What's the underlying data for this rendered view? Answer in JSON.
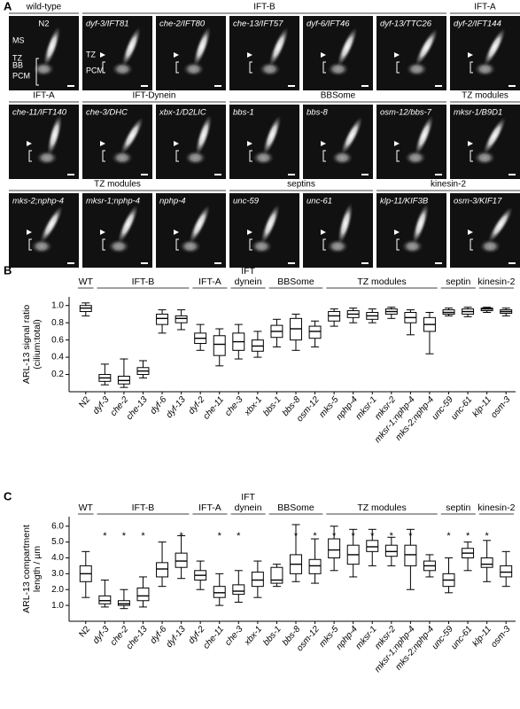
{
  "panel_a": {
    "label": "A",
    "rows": [
      {
        "groups": [
          {
            "title": "wild-type",
            "panels": [
              "N2"
            ]
          },
          {
            "title": "IFT-B",
            "panels": [
              "dyf-3/IFT81",
              "che-2/IFT80",
              "che-13/IFT57",
              "dyf-6/IFT46",
              "dyf-13/TTC26"
            ]
          },
          {
            "title": "IFT-A",
            "panels": [
              "dyf-2/IFT144"
            ]
          }
        ]
      },
      {
        "groups": [
          {
            "title": "IFT-A",
            "panels": [
              "che-11/IFT140"
            ]
          },
          {
            "title": "IFT-Dynein",
            "panels": [
              "che-3/DHC",
              "xbx-1/D2LIC"
            ]
          },
          {
            "title": "BBSome",
            "panels": [
              "bbs-1",
              "bbs-8",
              "osm-12/bbs-7"
            ]
          },
          {
            "title": "TZ modules",
            "panels": [
              "mksr-1/B9D1"
            ]
          }
        ]
      },
      {
        "groups": [
          {
            "title": "TZ modules",
            "panels": [
              "mks-2;nphp-4",
              "mksr-1;nphp-4",
              "nphp-4"
            ]
          },
          {
            "title": "septins",
            "panels": [
              "unc-59",
              "unc-61"
            ]
          },
          {
            "title": "kinesin-2",
            "panels": [
              "klp-11/KIF3B",
              "osm-3/KIF17"
            ]
          }
        ]
      }
    ],
    "wild_type_labels": [
      "MS",
      "TZ",
      "BB",
      "PCM"
    ],
    "ift_b_labels": [
      "TZ",
      "PCM"
    ]
  },
  "chart_data": [
    {
      "type": "box",
      "panel_label": "B",
      "ylabel": [
        "ARL-13 signal ratio",
        "(cilium:total)"
      ],
      "categories": [
        "N2",
        "dyf-3",
        "che-2",
        "che-13",
        "dyf-6",
        "dyf-13",
        "dyf-2",
        "che-11",
        "che-3",
        "xbx-1",
        "bbs-1",
        "bbs-8",
        "osm-12",
        "mks-5",
        "nphp-4",
        "mksr-1",
        "mksr-2",
        "mksr-1;nphp-4",
        "mks-2;nphp-4",
        "unc-59",
        "unc-61",
        "klp-11",
        "osm-3"
      ],
      "groups": [
        {
          "label": [
            "WT"
          ],
          "from": "N2",
          "to": "N2"
        },
        {
          "label": [
            "IFT-B"
          ],
          "from": "dyf-3",
          "to": "dyf-13"
        },
        {
          "label": [
            "IFT-A"
          ],
          "from": "dyf-2",
          "to": "che-11"
        },
        {
          "label": [
            "IFT",
            "dynein"
          ],
          "from": "che-3",
          "to": "xbx-1"
        },
        {
          "label": [
            "BBSome"
          ],
          "from": "bbs-1",
          "to": "osm-12"
        },
        {
          "label": [
            "TZ modules"
          ],
          "from": "mks-5",
          "to": "mks-2;nphp-4"
        },
        {
          "label": [
            "septin"
          ],
          "from": "unc-59",
          "to": "unc-61"
        },
        {
          "label": [
            "kinesin-2"
          ],
          "from": "klp-11",
          "to": "osm-3"
        }
      ],
      "values": [
        [
          0.88,
          0.93,
          0.97,
          1.0,
          1.03
        ],
        [
          0.08,
          0.12,
          0.16,
          0.2,
          0.32
        ],
        [
          0.05,
          0.09,
          0.13,
          0.18,
          0.38
        ],
        [
          0.16,
          0.2,
          0.24,
          0.28,
          0.36
        ],
        [
          0.68,
          0.78,
          0.85,
          0.9,
          0.95
        ],
        [
          0.72,
          0.8,
          0.85,
          0.88,
          0.95
        ],
        [
          0.48,
          0.56,
          0.62,
          0.68,
          0.78
        ],
        [
          0.3,
          0.42,
          0.55,
          0.65,
          0.73
        ],
        [
          0.38,
          0.48,
          0.58,
          0.68,
          0.78
        ],
        [
          0.4,
          0.47,
          0.53,
          0.6,
          0.7
        ],
        [
          0.52,
          0.63,
          0.7,
          0.77,
          0.84
        ],
        [
          0.48,
          0.6,
          0.73,
          0.85,
          0.9
        ],
        [
          0.52,
          0.62,
          0.7,
          0.76,
          0.82
        ],
        [
          0.76,
          0.82,
          0.88,
          0.93,
          0.96
        ],
        [
          0.8,
          0.86,
          0.9,
          0.94,
          0.97
        ],
        [
          0.8,
          0.84,
          0.88,
          0.92,
          0.96
        ],
        [
          0.85,
          0.9,
          0.93,
          0.96,
          0.98
        ],
        [
          0.66,
          0.8,
          0.86,
          0.92,
          0.95
        ],
        [
          0.44,
          0.7,
          0.78,
          0.86,
          0.92
        ],
        [
          0.88,
          0.9,
          0.92,
          0.95,
          0.97
        ],
        [
          0.87,
          0.9,
          0.93,
          0.96,
          0.98
        ],
        [
          0.92,
          0.94,
          0.96,
          0.97,
          0.98
        ],
        [
          0.88,
          0.91,
          0.93,
          0.95,
          0.97
        ]
      ],
      "ylim": [
        0,
        1.1
      ],
      "yticks": [
        0.2,
        0.4,
        0.6,
        0.8,
        {
          "value": 1,
          "label": "1.0"
        }
      ]
    },
    {
      "type": "box",
      "panel_label": "C",
      "ylabel": [
        "ARL-13 compartment",
        "length / µm"
      ],
      "categories": [
        "N2",
        "dyf-3",
        "che-2",
        "che-13",
        "dyf-6",
        "dyf-13",
        "dyf-2",
        "che-11",
        "che-3",
        "xbx-1",
        "bbs-1",
        "bbs-8",
        "osm-12",
        "mks-5",
        "nphp-4",
        "mksr-1",
        "mksr-2",
        "mksr-1;nphp-4",
        "mks-2;nphp-4",
        "unc-59",
        "unc-61",
        "klp-11",
        "osm-3"
      ],
      "groups": [
        {
          "label": [
            "WT"
          ],
          "from": "N2",
          "to": "N2"
        },
        {
          "label": [
            "IFT-B"
          ],
          "from": "dyf-3",
          "to": "dyf-13"
        },
        {
          "label": [
            "IFT-A"
          ],
          "from": "dyf-2",
          "to": "che-11"
        },
        {
          "label": [
            "IFT",
            "dynein"
          ],
          "from": "che-3",
          "to": "xbx-1"
        },
        {
          "label": [
            "BBSome"
          ],
          "from": "bbs-1",
          "to": "osm-12"
        },
        {
          "label": [
            "TZ modules"
          ],
          "from": "mks-5",
          "to": "mks-2;nphp-4"
        },
        {
          "label": [
            "septin"
          ],
          "from": "unc-59",
          "to": "unc-61"
        },
        {
          "label": [
            "kinesin-2"
          ],
          "from": "klp-11",
          "to": "osm-3"
        }
      ],
      "annotations": [
        null,
        "*",
        "*",
        "*",
        null,
        "*",
        null,
        "*",
        "*",
        null,
        null,
        "*",
        "*",
        "*",
        "*",
        "*",
        "*",
        "*",
        null,
        "*",
        "*",
        "*",
        null
      ],
      "values": [
        [
          1.5,
          2.5,
          3.0,
          3.5,
          4.4
        ],
        [
          0.9,
          1.1,
          1.3,
          1.6,
          2.6
        ],
        [
          0.8,
          1.0,
          1.1,
          1.3,
          2.0
        ],
        [
          0.9,
          1.3,
          1.6,
          2.1,
          2.8
        ],
        [
          2.2,
          2.8,
          3.3,
          3.7,
          5.0
        ],
        [
          2.7,
          3.4,
          3.8,
          4.3,
          5.4
        ],
        [
          2.0,
          2.6,
          2.9,
          3.2,
          3.8
        ],
        [
          1.0,
          1.5,
          1.8,
          2.2,
          3.0
        ],
        [
          1.2,
          1.7,
          1.9,
          2.3,
          3.2
        ],
        [
          1.5,
          2.2,
          2.6,
          3.1,
          3.8
        ],
        [
          2.2,
          2.4,
          2.6,
          3.4,
          3.6
        ],
        [
          2.5,
          3.0,
          3.6,
          4.2,
          6.1
        ],
        [
          2.4,
          3.0,
          3.5,
          3.9,
          5.2
        ],
        [
          3.2,
          4.0,
          4.5,
          5.2,
          6.0
        ],
        [
          2.8,
          3.6,
          4.2,
          4.8,
          5.8
        ],
        [
          3.5,
          4.4,
          4.7,
          5.1,
          5.8
        ],
        [
          3.5,
          4.1,
          4.4,
          4.8,
          5.3
        ],
        [
          2.0,
          3.5,
          4.2,
          4.8,
          5.8
        ],
        [
          2.8,
          3.2,
          3.5,
          3.8,
          4.2
        ],
        [
          1.8,
          2.2,
          2.6,
          3.0,
          4.0
        ],
        [
          3.2,
          4.0,
          4.3,
          4.6,
          5.0
        ],
        [
          2.5,
          3.4,
          3.6,
          4.0,
          5.1
        ],
        [
          2.2,
          2.8,
          3.1,
          3.5,
          4.4
        ]
      ],
      "ylim": [
        0,
        6.6
      ],
      "yticks": [
        {
          "value": 1,
          "label": "1.0"
        },
        {
          "value": 2,
          "label": "2.0"
        },
        {
          "value": 3,
          "label": "3.0"
        },
        {
          "value": 4,
          "label": "4.0"
        },
        {
          "value": 5,
          "label": "5.0"
        },
        {
          "value": 6,
          "label": "6.0"
        }
      ]
    }
  ]
}
